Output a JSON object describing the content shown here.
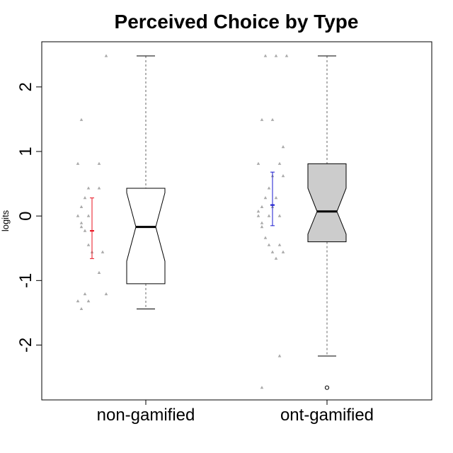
{
  "chart_data": {
    "type": "box",
    "title": "Perceived Choice by Type",
    "xlabel": "",
    "ylabel": "logits",
    "ylim": [
      -2.85,
      2.7
    ],
    "yticks": [
      -2,
      -1,
      0,
      1,
      2
    ],
    "categories": [
      "non-gamified",
      "ont-gamified"
    ],
    "series": [
      {
        "name": "non-gamified",
        "box_fill": "#ffffff",
        "box": {
          "lower_whisker": -1.44,
          "q1": -1.05,
          "median": -0.17,
          "q3": 0.43,
          "upper_whisker": 2.48,
          "notch_low": -0.7,
          "notch_high": 0.36,
          "outliers": []
        },
        "mean_ci": {
          "mean": -0.23,
          "low": -0.66,
          "high": 0.28,
          "color": "#e8101e"
        },
        "points": [
          2.48,
          1.49,
          0.81,
          0.81,
          0.43,
          0.43,
          0.28,
          0.14,
          0.0,
          0.0,
          -0.11,
          -0.17,
          -0.23,
          -0.45,
          -0.56,
          -0.56,
          -0.88,
          -1.21,
          -1.21,
          -1.32,
          -1.32,
          -1.44
        ]
      },
      {
        "name": "ont-gamified",
        "box_fill": "#cccccc",
        "box": {
          "lower_whisker": -2.17,
          "q1": -0.4,
          "median": 0.07,
          "q3": 0.81,
          "upper_whisker": 2.48,
          "notch_low": -0.28,
          "notch_high": 0.43,
          "outliers": [
            -2.66
          ]
        },
        "mean_ci": {
          "mean": 0.17,
          "low": -0.15,
          "high": 0.68,
          "color": "#1a1ad0"
        },
        "points": [
          2.48,
          2.48,
          2.48,
          1.49,
          1.49,
          1.07,
          0.81,
          0.81,
          0.62,
          0.62,
          0.43,
          0.28,
          0.28,
          0.14,
          0.14,
          0.07,
          0.0,
          0.0,
          0.0,
          -0.11,
          -0.17,
          -0.34,
          -0.45,
          -0.45,
          -0.56,
          -0.56,
          -0.66,
          -2.17,
          -2.66
        ]
      }
    ],
    "point_color": "#aaaaaa",
    "whisker_color": "#666666",
    "axis_color": "#000000"
  }
}
